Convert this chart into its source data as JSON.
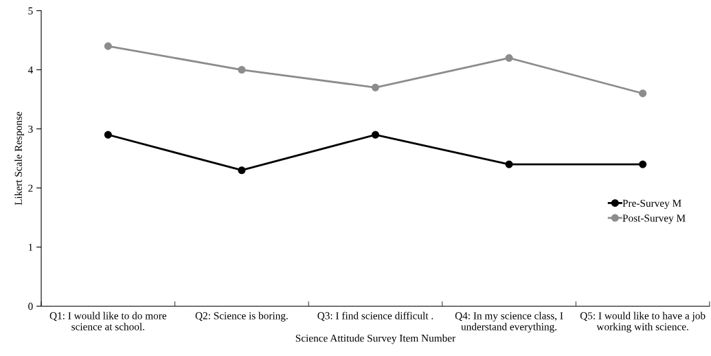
{
  "chart_data": {
    "type": "line",
    "xlabel": "Science Attitude Survey Item Number",
    "ylabel": "Likert Scale Response",
    "categories": [
      "Q1: I would like to do more\nscience at school.",
      "Q2: Science is boring.",
      "Q3: I find science difficult .",
      "Q4: In my science class, I\nunderstand everything.",
      "Q5: I would like to have a job\nworking with science."
    ],
    "series": [
      {
        "name": "Pre-Survey M",
        "color": "#000000",
        "values": [
          2.9,
          2.3,
          2.9,
          2.4,
          2.4
        ]
      },
      {
        "name": "Post-Survey M",
        "color": "#8c8c8c",
        "values": [
          4.4,
          4.0,
          3.7,
          4.2,
          3.6
        ]
      }
    ],
    "ylim": [
      0,
      5
    ],
    "yticks": [
      0,
      1,
      2,
      3,
      4,
      5
    ],
    "grid": false,
    "legend": "right",
    "marker": "circle",
    "line_style": "solid"
  }
}
